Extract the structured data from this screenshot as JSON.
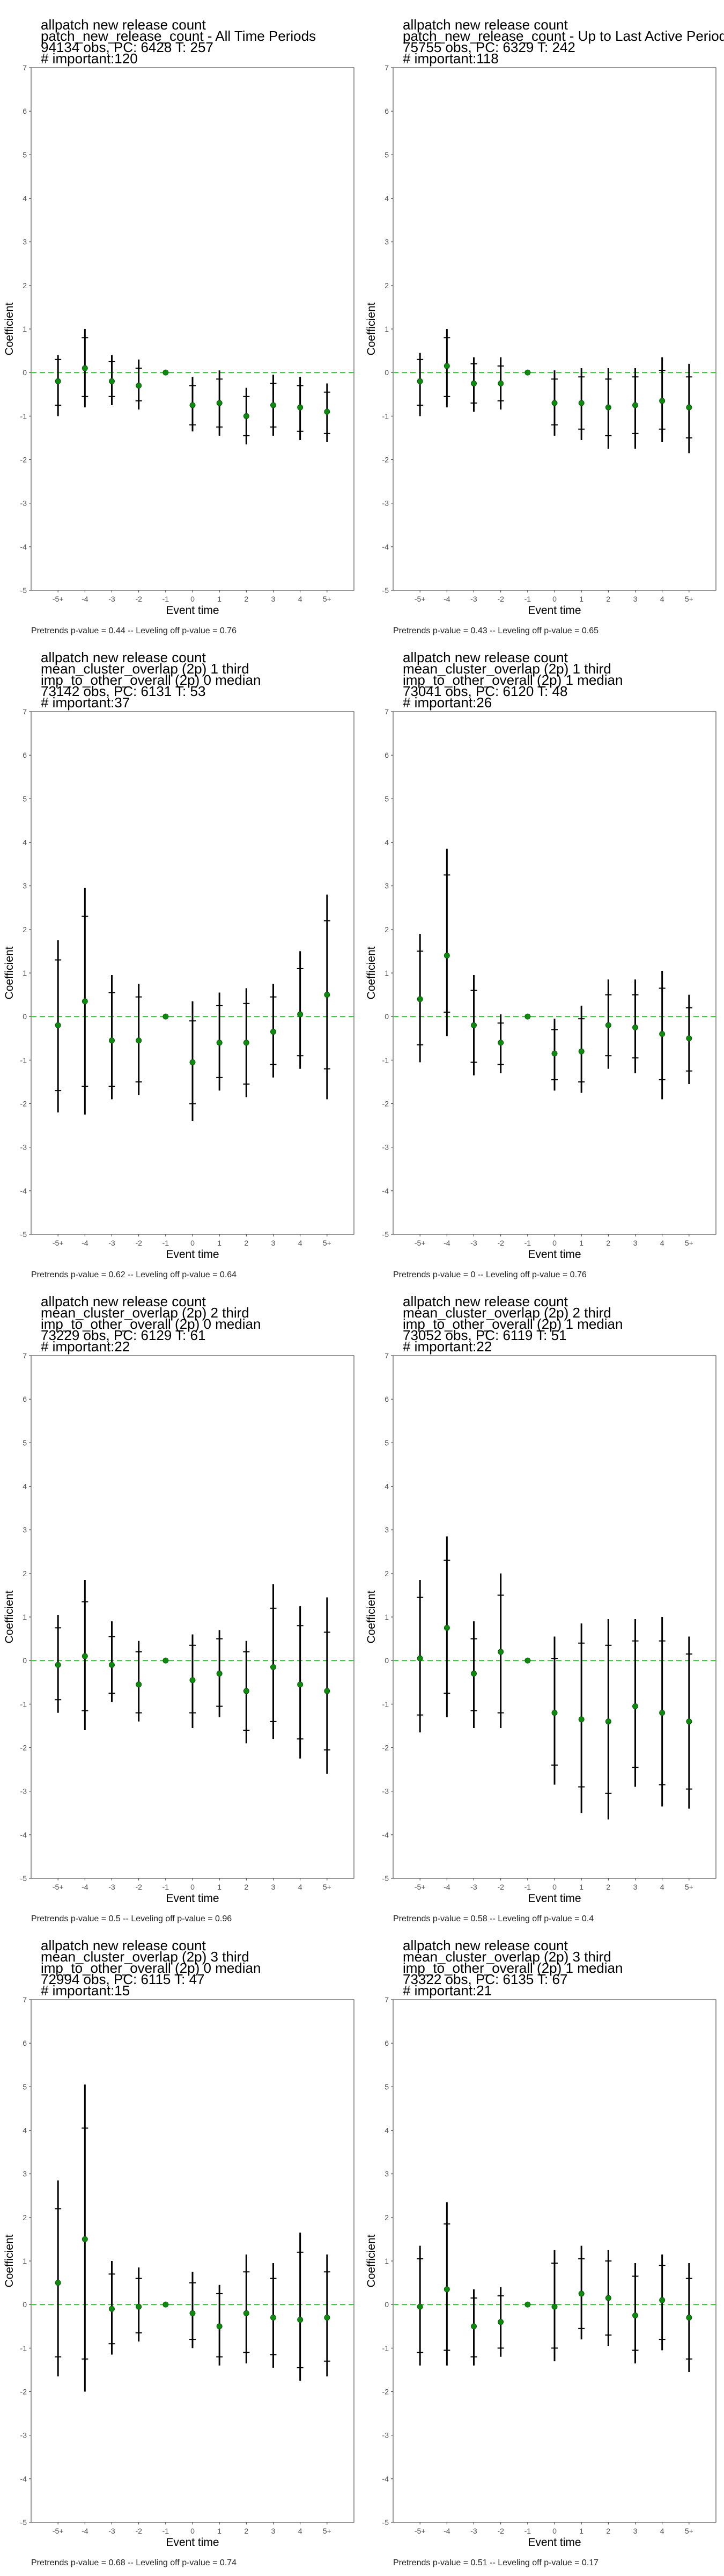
{
  "colors": {
    "point": "#118811",
    "bar": "#000000",
    "zero_line": "#33cc33",
    "panel_border": "#333333",
    "tick_text": "#4d4d4d"
  },
  "chart_data": [
    {
      "type": "scatter",
      "title_lines": [
        " allpatch new release count",
        "patch_new_release_count - All Time Periods",
        "94134 obs, PC: 6428 T: 257",
        "# important:120"
      ],
      "xlabel": "Event time",
      "ylabel": "Coefficient",
      "categories": [
        "-5+",
        "-4",
        "-3",
        "-2",
        "-1",
        "0",
        "1",
        "2",
        "3",
        "4",
        "5+"
      ],
      "ylim": [
        -5,
        7
      ],
      "yticks": [
        -5,
        -4,
        -3,
        -2,
        -1,
        0,
        1,
        2,
        3,
        4,
        5,
        6,
        7
      ],
      "estimates": [
        -0.2,
        0.1,
        -0.2,
        -0.3,
        0,
        -0.75,
        -0.7,
        -1.0,
        -0.75,
        -0.8,
        -0.9
      ],
      "ci_low": [
        -1.0,
        -0.8,
        -0.75,
        -0.85,
        0,
        -1.35,
        -1.45,
        -1.65,
        -1.45,
        -1.55,
        -1.6
      ],
      "ci_high": [
        0.4,
        1.0,
        0.4,
        0.3,
        0,
        -0.1,
        0.05,
        -0.35,
        -0.05,
        -0.1,
        -0.25
      ],
      "inner_low": [
        -0.75,
        -0.55,
        -0.55,
        -0.65,
        0,
        -1.2,
        -1.25,
        -1.45,
        -1.25,
        -1.35,
        -1.4
      ],
      "inner_high": [
        0.3,
        0.8,
        0.25,
        0.1,
        0,
        -0.3,
        -0.15,
        -0.55,
        -0.25,
        -0.3,
        -0.45
      ],
      "zero_line": 0,
      "footnote": "Pretrends p-value = 0.44 -- Leveling off p-value = 0.76"
    },
    {
      "type": "scatter",
      "title_lines": [
        " allpatch new release count",
        "patch_new_release_count - Up to Last Active Period",
        "75755 obs, PC: 6329 T: 242",
        "# important:118"
      ],
      "xlabel": "Event time",
      "ylabel": "Coefficient",
      "categories": [
        "-5+",
        "-4",
        "-3",
        "-2",
        "-1",
        "0",
        "1",
        "2",
        "3",
        "4",
        "5+"
      ],
      "ylim": [
        -5,
        7
      ],
      "yticks": [
        -5,
        -4,
        -3,
        -2,
        -1,
        0,
        1,
        2,
        3,
        4,
        5,
        6,
        7
      ],
      "estimates": [
        -0.2,
        0.15,
        -0.25,
        -0.25,
        0,
        -0.7,
        -0.7,
        -0.8,
        -0.75,
        -0.65,
        -0.8
      ],
      "ci_low": [
        -1.0,
        -0.8,
        -0.9,
        -0.85,
        0,
        -1.45,
        -1.55,
        -1.75,
        -1.75,
        -1.6,
        -1.85
      ],
      "ci_high": [
        0.45,
        1.0,
        0.35,
        0.35,
        0,
        0.05,
        0.1,
        0.1,
        0.1,
        0.35,
        0.2
      ],
      "inner_low": [
        -0.75,
        -0.55,
        -0.7,
        -0.65,
        0,
        -1.2,
        -1.3,
        -1.45,
        -1.4,
        -1.3,
        -1.5
      ],
      "inner_high": [
        0.3,
        0.8,
        0.2,
        0.15,
        0,
        -0.15,
        -0.1,
        -0.15,
        -0.1,
        0.05,
        -0.1
      ],
      "zero_line": 0,
      "footnote": "Pretrends p-value = 0.43 -- Leveling off p-value = 0.65"
    },
    {
      "type": "scatter",
      "title_lines": [
        " allpatch new release count",
        "mean_cluster_overlap (2p) 1 third",
        "imp_to_other_overall (2p) 0 median",
        "73142 obs, PC: 6131 T: 53",
        "# important:37"
      ],
      "xlabel": "Event time",
      "ylabel": "Coefficient",
      "categories": [
        "-5+",
        "-4",
        "-3",
        "-2",
        "-1",
        "0",
        "1",
        "2",
        "3",
        "4",
        "5+"
      ],
      "ylim": [
        -5,
        7
      ],
      "yticks": [
        -5,
        -4,
        -3,
        -2,
        -1,
        0,
        1,
        2,
        3,
        4,
        5,
        6,
        7
      ],
      "estimates": [
        -0.2,
        0.35,
        -0.55,
        -0.55,
        0,
        -1.05,
        -0.6,
        -0.6,
        -0.35,
        0.05,
        0.5
      ],
      "ci_low": [
        -2.2,
        -2.25,
        -1.9,
        -1.8,
        0,
        -2.4,
        -1.7,
        -1.85,
        -1.4,
        -1.2,
        -1.9
      ],
      "ci_high": [
        1.75,
        2.95,
        0.95,
        0.75,
        0,
        0.35,
        0.55,
        0.65,
        0.75,
        1.5,
        2.8
      ],
      "inner_low": [
        -1.7,
        -1.6,
        -1.6,
        -1.5,
        0,
        -2.0,
        -1.4,
        -1.55,
        -1.1,
        -0.9,
        -1.2
      ],
      "inner_high": [
        1.3,
        2.3,
        0.55,
        0.45,
        0,
        -0.1,
        0.25,
        0.3,
        0.45,
        1.1,
        2.2
      ],
      "zero_line": 0,
      "footnote": "Pretrends p-value = 0.62 -- Leveling off p-value = 0.64"
    },
    {
      "type": "scatter",
      "title_lines": [
        " allpatch new release count",
        "mean_cluster_overlap (2p) 1 third",
        "imp_to_other_overall (2p) 1 median",
        "73041 obs, PC: 6120 T: 48",
        "# important:26"
      ],
      "xlabel": "Event time",
      "ylabel": "Coefficient",
      "categories": [
        "-5+",
        "-4",
        "-3",
        "-2",
        "-1",
        "0",
        "1",
        "2",
        "3",
        "4",
        "5+"
      ],
      "ylim": [
        -5,
        7
      ],
      "yticks": [
        -5,
        -4,
        -3,
        -2,
        -1,
        0,
        1,
        2,
        3,
        4,
        5,
        6,
        7
      ],
      "estimates": [
        0.4,
        1.4,
        -0.2,
        -0.6,
        0,
        -0.85,
        -0.8,
        -0.2,
        -0.25,
        -0.4,
        -0.5
      ],
      "ci_low": [
        -1.05,
        -0.45,
        -1.35,
        -1.3,
        0,
        -1.7,
        -1.75,
        -1.2,
        -1.3,
        -1.9,
        -1.55
      ],
      "ci_high": [
        1.9,
        3.85,
        0.95,
        0.05,
        0,
        -0.05,
        0.25,
        0.85,
        0.85,
        1.05,
        0.5
      ],
      "inner_low": [
        -0.65,
        0.1,
        -1.05,
        -1.1,
        0,
        -1.45,
        -1.5,
        -0.9,
        -0.95,
        -1.45,
        -1.25
      ],
      "inner_high": [
        1.5,
        3.25,
        0.6,
        -0.15,
        0,
        -0.3,
        -0.05,
        0.5,
        0.5,
        0.65,
        0.2
      ],
      "zero_line": 0,
      "footnote": "Pretrends p-value = 0 -- Leveling off p-value = 0.76"
    },
    {
      "type": "scatter",
      "title_lines": [
        " allpatch new release count",
        "mean_cluster_overlap (2p) 2 third",
        "imp_to_other_overall (2p) 0 median",
        "73229 obs, PC: 6129 T: 61",
        "# important:22"
      ],
      "xlabel": "Event time",
      "ylabel": "Coefficient",
      "categories": [
        "-5+",
        "-4",
        "-3",
        "-2",
        "-1",
        "0",
        "1",
        "2",
        "3",
        "4",
        "5+"
      ],
      "ylim": [
        -5,
        7
      ],
      "yticks": [
        -5,
        -4,
        -3,
        -2,
        -1,
        0,
        1,
        2,
        3,
        4,
        5,
        6,
        7
      ],
      "estimates": [
        -0.1,
        0.1,
        -0.1,
        -0.55,
        0,
        -0.45,
        -0.3,
        -0.7,
        -0.15,
        -0.55,
        -0.7
      ],
      "ci_low": [
        -1.2,
        -1.6,
        -0.95,
        -1.4,
        0,
        -1.55,
        -1.3,
        -1.9,
        -1.8,
        -2.25,
        -2.6
      ],
      "ci_high": [
        1.05,
        1.85,
        0.9,
        0.45,
        0,
        0.6,
        0.7,
        0.45,
        1.75,
        1.25,
        1.45
      ],
      "inner_low": [
        -0.9,
        -1.15,
        -0.75,
        -1.2,
        0,
        -1.2,
        -1.05,
        -1.6,
        -1.4,
        -1.8,
        -2.05
      ],
      "inner_high": [
        0.75,
        1.35,
        0.55,
        0.2,
        0,
        0.35,
        0.5,
        0.2,
        1.2,
        0.8,
        0.65
      ],
      "zero_line": 0,
      "footnote": "Pretrends p-value = 0.5 -- Leveling off p-value = 0.96"
    },
    {
      "type": "scatter",
      "title_lines": [
        " allpatch new release count",
        "mean_cluster_overlap (2p) 2 third",
        "imp_to_other_overall (2p) 1 median",
        "73052 obs, PC: 6119 T: 51",
        "# important:22"
      ],
      "xlabel": "Event time",
      "ylabel": "Coefficient",
      "categories": [
        "-5+",
        "-4",
        "-3",
        "-2",
        "-1",
        "0",
        "1",
        "2",
        "3",
        "4",
        "5+"
      ],
      "ylim": [
        -5,
        7
      ],
      "yticks": [
        -5,
        -4,
        -3,
        -2,
        -1,
        0,
        1,
        2,
        3,
        4,
        5,
        6,
        7
      ],
      "estimates": [
        0.05,
        0.75,
        -0.3,
        0.2,
        0,
        -1.2,
        -1.35,
        -1.4,
        -1.05,
        -1.2,
        -1.4
      ],
      "ci_low": [
        -1.65,
        -1.3,
        -1.55,
        -1.55,
        0,
        -2.85,
        -3.5,
        -3.65,
        -2.9,
        -3.35,
        -3.4
      ],
      "ci_high": [
        1.85,
        2.85,
        0.9,
        2.0,
        0,
        0.55,
        0.85,
        0.95,
        0.95,
        1.0,
        0.55
      ],
      "inner_low": [
        -1.25,
        -0.75,
        -1.15,
        -1.2,
        0,
        -2.4,
        -2.9,
        -3.05,
        -2.45,
        -2.85,
        -2.95
      ],
      "inner_high": [
        1.45,
        2.3,
        0.5,
        1.5,
        0,
        0.05,
        0.4,
        0.35,
        0.45,
        0.45,
        0.15
      ],
      "zero_line": 0,
      "footnote": "Pretrends p-value = 0.58 -- Leveling off p-value = 0.4"
    },
    {
      "type": "scatter",
      "title_lines": [
        " allpatch new release count",
        "mean_cluster_overlap (2p) 3 third",
        "imp_to_other_overall (2p) 0 median",
        "72994 obs, PC: 6115 T: 47",
        "# important:15"
      ],
      "xlabel": "Event time",
      "ylabel": "Coefficient",
      "categories": [
        "-5+",
        "-4",
        "-3",
        "-2",
        "-1",
        "0",
        "1",
        "2",
        "3",
        "4",
        "5+"
      ],
      "ylim": [
        -5,
        7
      ],
      "yticks": [
        -5,
        -4,
        -3,
        -2,
        -1,
        0,
        1,
        2,
        3,
        4,
        5,
        6,
        7
      ],
      "estimates": [
        0.5,
        1.5,
        -0.1,
        -0.05,
        0,
        -0.2,
        -0.5,
        -0.2,
        -0.3,
        -0.35,
        -0.3
      ],
      "ci_low": [
        -1.65,
        -2.0,
        -1.15,
        -0.85,
        0,
        -1.0,
        -1.4,
        -1.35,
        -1.45,
        -1.75,
        -1.65
      ],
      "ci_high": [
        2.85,
        5.05,
        1.0,
        0.85,
        0,
        0.75,
        0.45,
        1.15,
        0.95,
        1.65,
        1.15
      ],
      "inner_low": [
        -1.2,
        -1.25,
        -0.9,
        -0.65,
        0,
        -0.8,
        -1.2,
        -1.1,
        -1.15,
        -1.45,
        -1.3
      ],
      "inner_high": [
        2.2,
        4.05,
        0.7,
        0.6,
        0,
        0.5,
        0.25,
        0.75,
        0.6,
        1.2,
        0.75
      ],
      "zero_line": 0,
      "footnote": "Pretrends p-value = 0.68 -- Leveling off p-value = 0.74"
    },
    {
      "type": "scatter",
      "title_lines": [
        " allpatch new release count",
        "mean_cluster_overlap (2p) 3 third",
        "imp_to_other_overall (2p) 1 median",
        "73322 obs, PC: 6135 T: 67",
        "# important:21"
      ],
      "xlabel": "Event time",
      "ylabel": "Coefficient",
      "categories": [
        "-5+",
        "-4",
        "-3",
        "-2",
        "-1",
        "0",
        "1",
        "2",
        "3",
        "4",
        "5+"
      ],
      "ylim": [
        -5,
        7
      ],
      "yticks": [
        -5,
        -4,
        -3,
        -2,
        -1,
        0,
        1,
        2,
        3,
        4,
        5,
        6,
        7
      ],
      "estimates": [
        -0.05,
        0.35,
        -0.5,
        -0.4,
        0,
        -0.05,
        0.25,
        0.15,
        -0.25,
        0.1,
        -0.3
      ],
      "ci_low": [
        -1.4,
        -1.4,
        -1.4,
        -1.2,
        0,
        -1.3,
        -0.8,
        -0.95,
        -1.35,
        -1.05,
        -1.55
      ],
      "ci_high": [
        1.35,
        2.35,
        0.35,
        0.4,
        0,
        1.25,
        1.35,
        1.25,
        0.95,
        1.15,
        0.95
      ],
      "inner_low": [
        -1.1,
        -1.05,
        -1.2,
        -1.0,
        0,
        -1.0,
        -0.55,
        -0.7,
        -1.05,
        -0.8,
        -1.25
      ],
      "inner_high": [
        1.05,
        1.85,
        0.15,
        0.2,
        0,
        0.95,
        1.05,
        1.0,
        0.65,
        0.9,
        0.6
      ],
      "zero_line": 0,
      "footnote": "Pretrends p-value = 0.51 -- Leveling off p-value = 0.17"
    }
  ]
}
